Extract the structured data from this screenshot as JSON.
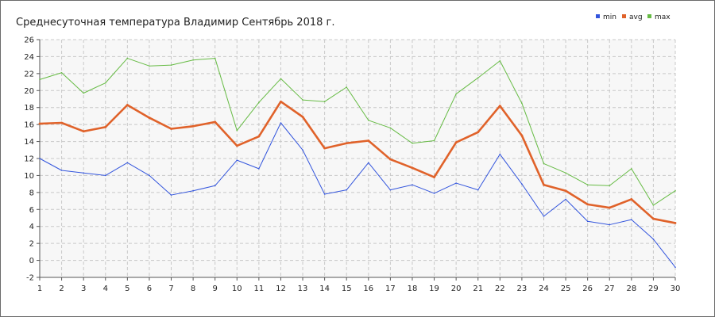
{
  "chart_data": {
    "type": "line",
    "title": "Среднесуточная температура Владимир  Сентябрь 2018 г.",
    "xlabel": "",
    "ylabel": "",
    "x": [
      1,
      2,
      3,
      4,
      5,
      6,
      7,
      8,
      9,
      10,
      11,
      12,
      13,
      14,
      15,
      16,
      17,
      18,
      19,
      20,
      21,
      22,
      23,
      24,
      25,
      26,
      27,
      28,
      29,
      30
    ],
    "xlim": [
      1,
      30
    ],
    "ylim": [
      -2,
      26
    ],
    "yticks": [
      -2,
      0,
      2,
      4,
      6,
      8,
      10,
      12,
      14,
      16,
      18,
      20,
      22,
      24,
      26
    ],
    "grid": true,
    "legend": "top-right",
    "series": [
      {
        "name": "min",
        "color": "#3355dd",
        "values": [
          12.0,
          10.6,
          10.3,
          10.0,
          11.5,
          10.0,
          7.7,
          8.2,
          8.8,
          11.8,
          10.8,
          16.2,
          13.0,
          7.8,
          8.3,
          11.5,
          8.3,
          8.9,
          7.9,
          9.1,
          8.3,
          12.5,
          9.0,
          5.2,
          7.2,
          4.6,
          4.2,
          4.8,
          2.5,
          -0.8
        ]
      },
      {
        "name": "avg",
        "color": "#e0622a",
        "values": [
          16.1,
          16.2,
          15.2,
          15.7,
          18.3,
          16.8,
          15.5,
          15.8,
          16.3,
          13.5,
          14.6,
          18.7,
          16.9,
          13.2,
          13.8,
          14.1,
          11.9,
          10.9,
          9.8,
          13.9,
          15.1,
          18.2,
          14.7,
          8.9,
          8.2,
          6.6,
          6.2,
          7.2,
          4.9,
          4.4
        ]
      },
      {
        "name": "max",
        "color": "#66bb44",
        "values": [
          21.3,
          22.1,
          19.7,
          20.9,
          23.8,
          22.9,
          23.0,
          23.6,
          23.8,
          15.3,
          18.6,
          21.4,
          18.9,
          18.7,
          20.4,
          16.5,
          15.6,
          13.8,
          14.1,
          19.6,
          21.5,
          23.5,
          18.5,
          11.4,
          10.3,
          8.9,
          8.8,
          10.8,
          6.5,
          8.2
        ]
      }
    ]
  }
}
